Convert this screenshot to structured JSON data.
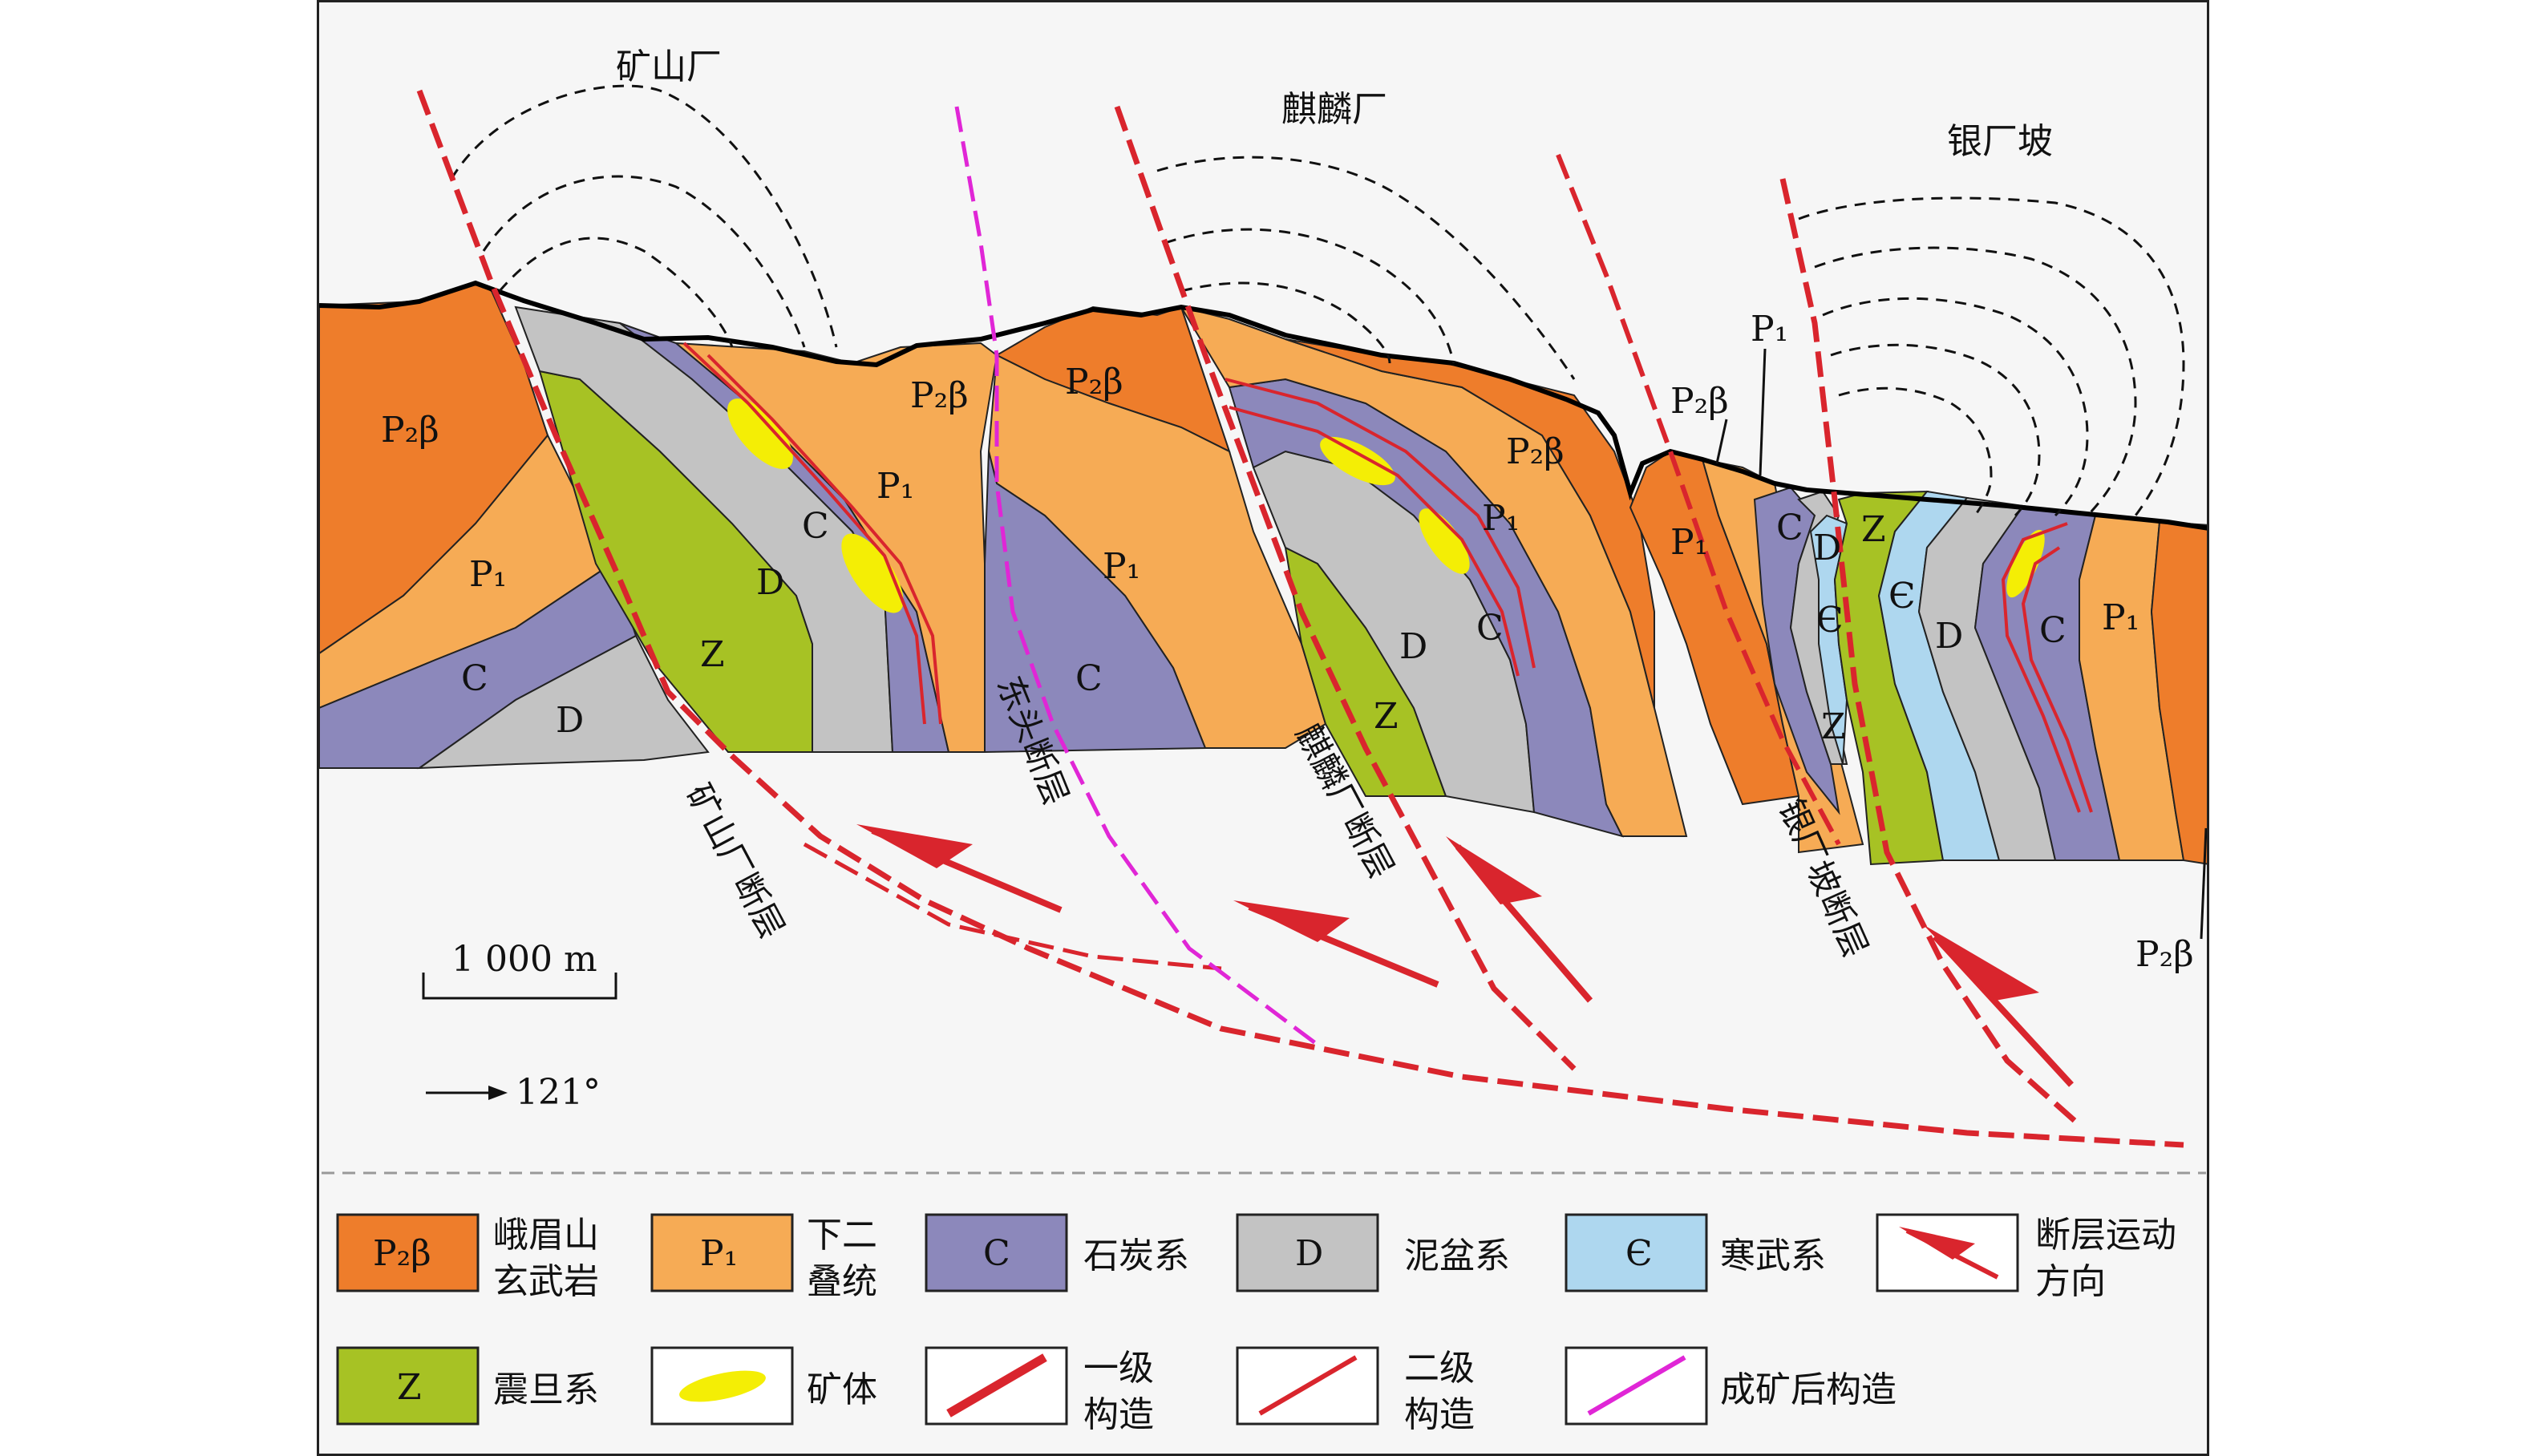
{
  "places": {
    "kuangshanchang": "矿山厂",
    "qilinchang": "麒麟厂",
    "yinchangpo": "银厂坡"
  },
  "faults": {
    "kuangshanchang": "矿山厂断层",
    "dongtou": "东头断层",
    "qilinchang": "麒麟厂断层",
    "yinchangpo": "银厂坡断层"
  },
  "units": {
    "P2b": "P₂β",
    "P1": "P₁",
    "C": "C",
    "D": "D",
    "Cam": "Є",
    "Z": "Z"
  },
  "scale": {
    "label": "1 000 m"
  },
  "orientation": {
    "label": "121°"
  },
  "legend": [
    {
      "symbol": "P₂β",
      "text": [
        "峨眉山",
        "玄武岩"
      ],
      "color": "#ee7d2b"
    },
    {
      "symbol": "P₁",
      "text": [
        "下二",
        "叠统"
      ],
      "color": "#f6ab55"
    },
    {
      "symbol": "C",
      "text": [
        "石炭系"
      ],
      "color": "#8c88bb"
    },
    {
      "symbol": "D",
      "text": [
        "泥盆系"
      ],
      "color": "#c3c3c3"
    },
    {
      "symbol": "Є",
      "text": [
        "寒武系"
      ],
      "color": "#aed7ef"
    },
    {
      "symbol": "",
      "text": [
        "断层运动",
        "方向"
      ],
      "icon": "fault-motion-arrow-icon"
    },
    {
      "symbol": "Z",
      "text": [
        "震旦系"
      ],
      "color": "#a7c224"
    },
    {
      "symbol": "",
      "text": [
        "矿体"
      ],
      "icon": "ore-body-icon"
    },
    {
      "symbol": "",
      "text": [
        "一级",
        "构造"
      ],
      "icon": "primary-structure-icon"
    },
    {
      "symbol": "",
      "text": [
        "二级",
        "构造"
      ],
      "icon": "secondary-structure-icon"
    },
    {
      "symbol": "",
      "text": [
        "成矿后构造"
      ],
      "icon": "post-ore-structure-icon"
    }
  ],
  "colors": {
    "P2b": "#ee7d2b",
    "P1": "#f6ab55",
    "C": "#8c88bb",
    "D": "#c3c3c3",
    "Cam": "#aed7ef",
    "Z": "#a7c224",
    "ore": "#f4ee05",
    "fault": "#d9252d",
    "post_ore": "#e026d6"
  }
}
